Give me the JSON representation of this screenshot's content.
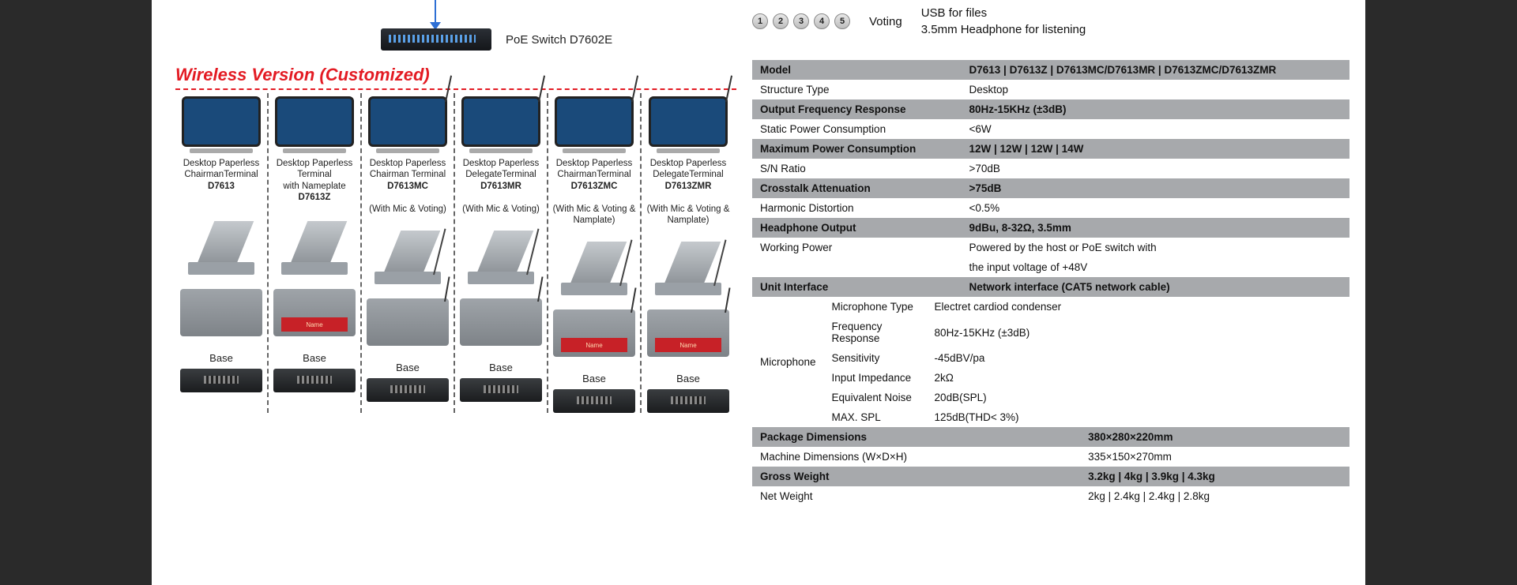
{
  "switch": {
    "label": "PoE Switch D7602E"
  },
  "section_title": "Wireless Version (Customized)",
  "products": [
    {
      "line1": "Desktop Paperless",
      "line2": "ChairmanTerminal",
      "model": "D7613",
      "note": "",
      "mic": false,
      "nameplate": false
    },
    {
      "line1": "Desktop Paperless",
      "line2": "Terminal",
      "line3": "with Nameplate",
      "model": "D7613Z",
      "note": "",
      "mic": false,
      "nameplate": true
    },
    {
      "line1": "Desktop Paperless",
      "line2": "Chairman Terminal",
      "model": "D7613MC",
      "note": "(With Mic & Voting)",
      "mic": true,
      "nameplate": false
    },
    {
      "line1": "Desktop Paperless",
      "line2": "DelegateTerminal",
      "model": "D7613MR",
      "note": "(With Mic & Voting)",
      "mic": true,
      "nameplate": false
    },
    {
      "line1": "Desktop Paperless",
      "line2": "ChairmanTerminal",
      "model": "D7613ZMC",
      "note": "(With Mic & Voting & Namplate)",
      "mic": true,
      "nameplate": true
    },
    {
      "line1": "Desktop Paperless",
      "line2": "DelegateTerminal",
      "model": "D7613ZMR",
      "note": "(With Mic & Voting & Namplate)",
      "mic": true,
      "nameplate": true
    }
  ],
  "base_label": "Base",
  "nameplate_text": "Name",
  "voting": {
    "buttons": [
      "1",
      "2",
      "3",
      "4",
      "5"
    ],
    "label": "Voting",
    "note1": "USB for files",
    "note2": "3.5mm Headphone for listening"
  },
  "spec_table": [
    {
      "band": true,
      "k": "Model",
      "v": "D7613 | D7613Z | D7613MC/D7613MR | D7613ZMC/D7613ZMR"
    },
    {
      "band": false,
      "k": "Structure Type",
      "v": "Desktop"
    },
    {
      "band": true,
      "k": "Output Frequency Response",
      "v": "80Hz-15KHz (±3dB)"
    },
    {
      "band": false,
      "k": "Static Power Consumption",
      "v": "<6W"
    },
    {
      "band": true,
      "k": "Maximum Power Consumption",
      "v": "12W | 12W | 12W | 14W"
    },
    {
      "band": false,
      "k": "S/N Ratio",
      "v": ">70dB"
    },
    {
      "band": true,
      "k": "Crosstalk Attenuation",
      "v": ">75dB"
    },
    {
      "band": false,
      "k": "Harmonic Distortion",
      "v": "<0.5%"
    },
    {
      "band": true,
      "k": "Headphone Output",
      "v": "9dBu, 8-32Ω, 3.5mm"
    },
    {
      "band": false,
      "k": "Working Power",
      "v": "Powered by the host or PoE switch with"
    },
    {
      "band": false,
      "k": "",
      "v": "the input voltage of +48V"
    },
    {
      "band": true,
      "k": "Unit Interface",
      "v": "Network interface (CAT5 network cable)"
    }
  ],
  "mic_group": {
    "label": "Microphone",
    "rows": [
      {
        "k": "Microphone Type",
        "v": "Electret cardiod condenser"
      },
      {
        "k": "Frequency Response",
        "v": "80Hz-15KHz (±3dB)"
      },
      {
        "k": "Sensitivity",
        "v": "-45dBV/pa"
      },
      {
        "k": "Input Impedance",
        "v": "2kΩ"
      },
      {
        "k": "Equivalent Noise",
        "v": "20dB(SPL)"
      },
      {
        "k": "MAX. SPL",
        "v": "125dB(THD< 3%)"
      }
    ]
  },
  "spec_table2": [
    {
      "band": true,
      "k": "Package Dimensions",
      "v": "380×280×220mm"
    },
    {
      "band": false,
      "k": "Machine Dimensions (W×D×H)",
      "v": "335×150×270mm"
    },
    {
      "band": true,
      "k": "Gross Weight",
      "v": "3.2kg | 4kg | 3.9kg | 4.3kg"
    },
    {
      "band": false,
      "k": "Net Weight",
      "v": "2kg | 2.4kg | 2.4kg | 2.8kg"
    }
  ]
}
